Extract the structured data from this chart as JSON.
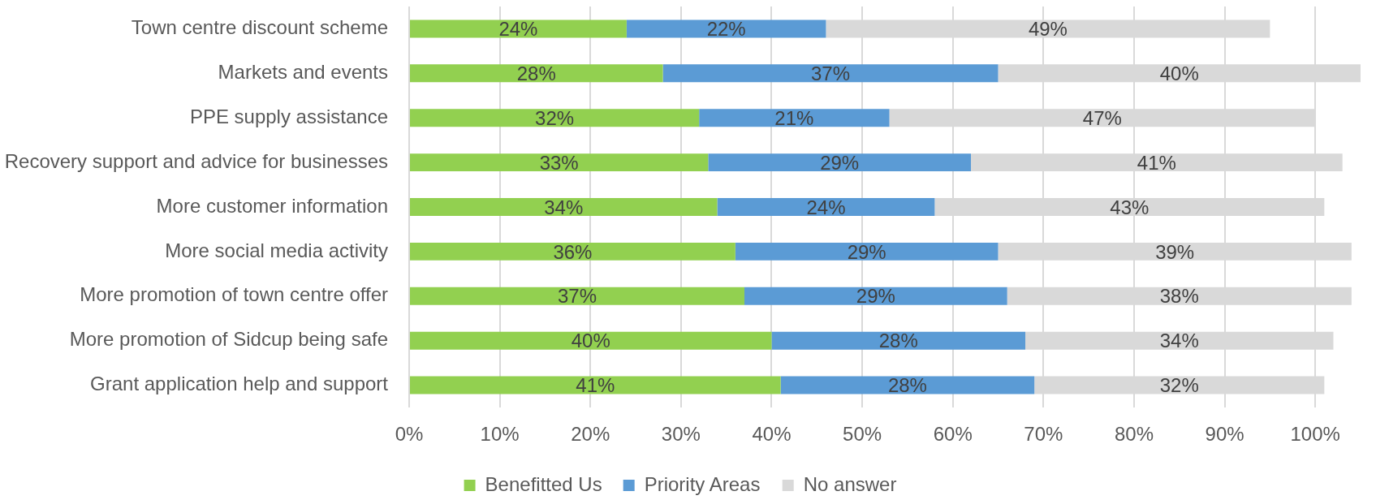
{
  "chart_data": {
    "type": "bar",
    "orientation": "horizontal",
    "stacked": true,
    "categories": [
      "Town centre discount scheme",
      "Markets and events",
      "PPE supply assistance",
      "Recovery support and advice for businesses",
      "More customer information",
      "More social media activity",
      "More promotion of town centre offer",
      "More promotion of Sidcup being safe",
      "Grant application help and support"
    ],
    "series": [
      {
        "name": "Benefitted Us",
        "color": "#92d050",
        "values": [
          24,
          28,
          32,
          33,
          34,
          36,
          37,
          40,
          41
        ],
        "value_labels": [
          "24%",
          "28%",
          "32%",
          "33%",
          "34%",
          "36%",
          "37%",
          "40%",
          "41%"
        ]
      },
      {
        "name": "Priority Areas",
        "color": "#5b9bd5",
        "values": [
          22,
          37,
          21,
          29,
          24,
          29,
          29,
          28,
          28
        ],
        "value_labels": [
          "22%",
          "37%",
          "21%",
          "29%",
          "24%",
          "29%",
          "29%",
          "28%",
          "28%"
        ]
      },
      {
        "name": "No answer",
        "color": "#d9d9d9",
        "values": [
          49,
          40,
          47,
          41,
          43,
          39,
          38,
          34,
          32
        ],
        "value_labels": [
          "49%",
          "40%",
          "47%",
          "41%",
          "43%",
          "39%",
          "38%",
          "34%",
          "32%"
        ]
      }
    ],
    "xlim": [
      0,
      105
    ],
    "xticks": [
      {
        "value": 0,
        "label": "0%"
      },
      {
        "value": 10,
        "label": "10%"
      },
      {
        "value": 20,
        "label": "20%"
      },
      {
        "value": 30,
        "label": "30%"
      },
      {
        "value": 40,
        "label": "40%"
      },
      {
        "value": 50,
        "label": "50%"
      },
      {
        "value": 60,
        "label": "60%"
      },
      {
        "value": 70,
        "label": "70%"
      },
      {
        "value": 80,
        "label": "80%"
      },
      {
        "value": 90,
        "label": "90%"
      },
      {
        "value": 100,
        "label": "100%"
      }
    ],
    "grid": "x",
    "legend": "bottom"
  }
}
